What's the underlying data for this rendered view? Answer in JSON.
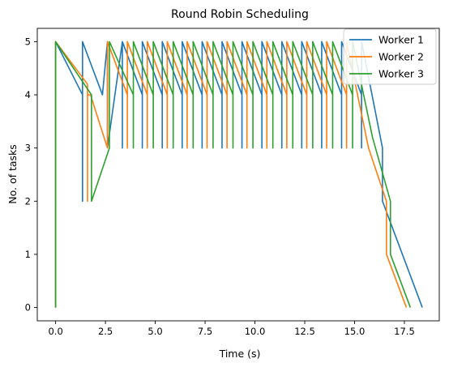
{
  "chart_data": {
    "type": "line",
    "title": "Round Robin Scheduling",
    "xlabel": "Time (s)",
    "ylabel": "No. of tasks",
    "xlim": [
      -0.92,
      19.25
    ],
    "ylim": [
      -0.25,
      5.25
    ],
    "xticks": [
      0.0,
      2.5,
      5.0,
      7.5,
      10.0,
      12.5,
      15.0,
      17.5
    ],
    "xtick_labels": [
      "0.0",
      "2.5",
      "5.0",
      "7.5",
      "10.0",
      "12.5",
      "15.0",
      "17.5"
    ],
    "yticks": [
      0,
      1,
      2,
      3,
      4,
      5
    ],
    "ytick_labels": [
      "0",
      "1",
      "2",
      "3",
      "4",
      "5"
    ],
    "grid": false,
    "legend_position": "top-right",
    "series": [
      {
        "name": "Worker 1",
        "color": "#1f77b4",
        "x": [
          0.0,
          0.0,
          1.35,
          1.35,
          1.35,
          2.35,
          2.6,
          2.6,
          3.35,
          3.35,
          3.35,
          4.35,
          4.35,
          4.35,
          5.35,
          5.35,
          5.35,
          6.35,
          6.35,
          6.35,
          7.35,
          7.35,
          7.35,
          8.35,
          8.35,
          8.35,
          9.35,
          9.35,
          9.35,
          10.35,
          10.35,
          10.35,
          11.35,
          11.35,
          11.35,
          12.35,
          12.35,
          12.35,
          13.35,
          13.35,
          13.35,
          14.35,
          14.35,
          14.35,
          15.35,
          15.35,
          15.35,
          16.4,
          16.4,
          18.4
        ],
        "y": [
          0,
          5,
          4,
          2,
          5,
          4,
          5,
          3,
          5,
          3,
          5,
          4,
          3,
          5,
          4,
          3,
          5,
          4,
          3,
          5,
          4,
          3,
          5,
          4,
          3,
          5,
          4,
          3,
          5,
          4,
          3,
          5,
          4,
          3,
          5,
          4,
          3,
          5,
          4,
          3,
          5,
          4,
          3,
          5,
          4,
          3,
          5,
          3,
          2,
          0
        ]
      },
      {
        "name": "Worker 2",
        "color": "#ff7f0e",
        "x": [
          0.0,
          0.0,
          1.6,
          1.6,
          1.6,
          1.75,
          2.6,
          2.6,
          3.6,
          3.6,
          3.6,
          4.6,
          4.6,
          4.6,
          5.6,
          5.6,
          5.6,
          6.6,
          6.6,
          6.6,
          7.6,
          7.6,
          7.6,
          8.6,
          8.6,
          8.6,
          9.6,
          9.6,
          9.6,
          10.6,
          10.6,
          10.6,
          11.6,
          11.6,
          11.6,
          12.6,
          12.6,
          12.6,
          13.6,
          13.6,
          13.6,
          14.6,
          14.6,
          14.6,
          15.7,
          15.7,
          16.6,
          16.6,
          17.6
        ],
        "y": [
          0,
          5,
          4.2,
          2,
          4,
          4,
          3,
          5,
          4,
          3,
          5,
          4,
          3,
          5,
          4,
          3,
          5,
          4,
          3,
          5,
          4,
          3,
          5,
          4,
          3,
          5,
          4,
          3,
          5,
          4,
          3,
          5,
          4,
          3,
          5,
          4,
          3,
          5,
          4,
          3,
          5,
          4,
          3,
          5,
          3,
          3,
          2,
          1,
          0
        ]
      },
      {
        "name": "Worker 3",
        "color": "#2ca02c",
        "x": [
          0.0,
          0.0,
          1.8,
          1.8,
          2.7,
          2.7,
          2.7,
          3.9,
          3.9,
          3.9,
          4.9,
          4.9,
          4.9,
          5.9,
          5.9,
          5.9,
          6.9,
          6.9,
          6.9,
          7.9,
          7.9,
          7.9,
          8.9,
          8.9,
          8.9,
          9.9,
          9.9,
          9.9,
          10.9,
          10.9,
          10.9,
          11.9,
          11.9,
          11.9,
          12.9,
          12.9,
          12.9,
          13.9,
          13.9,
          13.9,
          14.9,
          14.9,
          14.9,
          15.9,
          16.8,
          16.8,
          17.8
        ],
        "y": [
          0,
          5,
          4,
          2,
          3,
          5,
          5,
          4,
          3,
          5,
          4,
          3,
          5,
          4,
          3,
          5,
          4,
          3,
          5,
          4,
          3,
          5,
          4,
          3,
          5,
          4,
          3,
          5,
          4,
          3,
          5,
          4,
          3,
          5,
          4,
          3,
          5,
          4,
          3,
          5,
          4,
          3,
          5,
          3.2,
          2,
          1,
          0
        ]
      }
    ]
  }
}
